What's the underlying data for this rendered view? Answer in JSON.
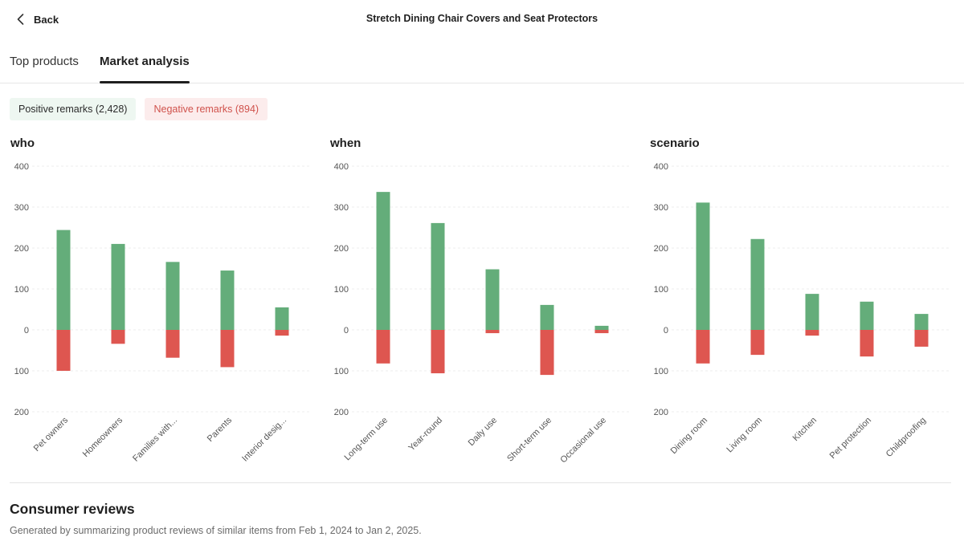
{
  "header": {
    "back_label": "Back",
    "title": "Stretch Dining Chair Covers and Seat Protectors"
  },
  "tabs": [
    {
      "label": "Top products",
      "active": false
    },
    {
      "label": "Market analysis",
      "active": true
    }
  ],
  "filters": {
    "positive_label": "Positive remarks (2,428)",
    "negative_label": "Negative remarks (894)"
  },
  "colors": {
    "positive": "#64ad7a",
    "negative": "#de5650",
    "grid": "#ececec",
    "tick": "#555555"
  },
  "chart_data": [
    {
      "type": "bar",
      "title": "who",
      "categories": [
        "Pet owners",
        "Homeowners",
        "Families with...",
        "Parents",
        "Interior desig..."
      ],
      "series": [
        {
          "name": "Positive remarks",
          "values": [
            244,
            210,
            166,
            145,
            55
          ]
        },
        {
          "name": "Negative remarks",
          "values": [
            -100,
            -34,
            -68,
            -91,
            -14
          ]
        }
      ],
      "yticks": [
        400,
        300,
        200,
        100,
        0,
        -100,
        -200
      ],
      "ytick_labels": [
        "400",
        "300",
        "200",
        "100",
        "0",
        "100",
        "200"
      ],
      "ylim": [
        -200,
        400
      ],
      "xlabel": "",
      "ylabel": "",
      "grid": true
    },
    {
      "type": "bar",
      "title": "when",
      "categories": [
        "Long-term use",
        "Year-round",
        "Daily use",
        "Short-term use",
        "Occasional use"
      ],
      "series": [
        {
          "name": "Positive remarks",
          "values": [
            337,
            261,
            148,
            61,
            10
          ]
        },
        {
          "name": "Negative remarks",
          "values": [
            -82,
            -106,
            -8,
            -110,
            -8
          ]
        }
      ],
      "yticks": [
        400,
        300,
        200,
        100,
        0,
        -100,
        -200
      ],
      "ytick_labels": [
        "400",
        "300",
        "200",
        "100",
        "0",
        "100",
        "200"
      ],
      "ylim": [
        -200,
        400
      ],
      "xlabel": "",
      "ylabel": "",
      "grid": true
    },
    {
      "type": "bar",
      "title": "scenario",
      "categories": [
        "Dining room",
        "Living room",
        "Kitchen",
        "Pet protection",
        "Childproofing"
      ],
      "series": [
        {
          "name": "Positive remarks",
          "values": [
            311,
            222,
            88,
            69,
            39
          ]
        },
        {
          "name": "Negative remarks",
          "values": [
            -82,
            -61,
            -14,
            -65,
            -41
          ]
        }
      ],
      "yticks": [
        400,
        300,
        200,
        100,
        0,
        -100,
        -200
      ],
      "ytick_labels": [
        "400",
        "300",
        "200",
        "100",
        "0",
        "100",
        "200"
      ],
      "ylim": [
        -200,
        400
      ],
      "xlabel": "",
      "ylabel": "",
      "grid": true
    }
  ],
  "reviews": {
    "title": "Consumer reviews",
    "subtitle": "Generated by summarizing product reviews of similar items from Feb 1, 2024 to Jan 2, 2025."
  }
}
